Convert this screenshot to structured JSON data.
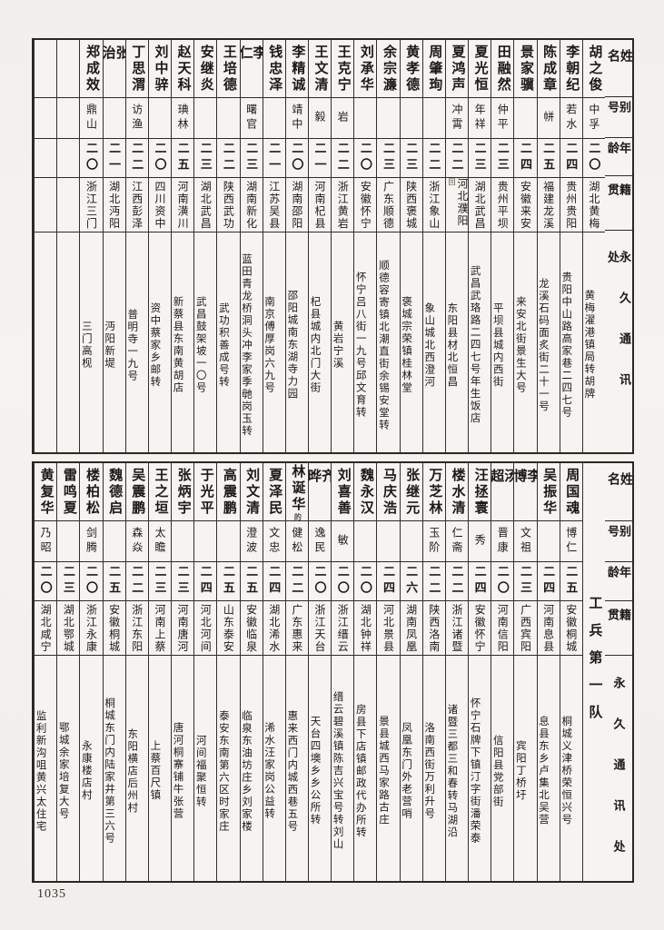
{
  "page": {
    "number": "1035"
  },
  "colors": {
    "paper": "#f5f4f0",
    "ink": "#1c1a17",
    "grid_line": "#2e2b26"
  },
  "row_headers": {
    "name": "姓名",
    "alias": "别号",
    "age": "年龄",
    "origin": "籍贯",
    "address": "永久通讯处"
  },
  "tables": [
    {
      "columns": [
        {
          "name": "胡之俊",
          "alias": "中孚",
          "age": "二〇",
          "origin": "湖北黄梅",
          "address": "黄梅濯港镇局转胡牌"
        },
        {
          "name": "李朝纪",
          "alias": "若水",
          "age": "二四",
          "origin": "贵州贵阳",
          "address": "贵阳中山路高家巷二四七号"
        },
        {
          "name": "陈成章",
          "alias": "帡",
          "age": "二五",
          "origin": "福建龙溪",
          "address": "龙溪石码面炙街二十一号"
        },
        {
          "name": "景家骥",
          "alias": "",
          "age": "二四",
          "origin": "安徽来安",
          "address": "来安北街景生大号"
        },
        {
          "name": "田融然",
          "alias": "仲平",
          "age": "二三",
          "origin": "贵州平坝",
          "address": "平坝县城内西街"
        },
        {
          "name": "夏光恒",
          "alias": "年祥",
          "age": "二三",
          "origin": "湖北武昌",
          "address": "武昌武珞路二四七号年生饭店"
        },
        {
          "name": "夏鸿声",
          "alias": "冲霄",
          "age": "二二",
          "origin": "河北濮阳",
          "origin_mark": "回",
          "address": "东阳县材北恒昌"
        },
        {
          "name": "周肇珣",
          "alias": "",
          "age": "二二",
          "origin": "浙江象山",
          "address": "象山城北西澄河"
        },
        {
          "name": "黄孝德",
          "alias": "",
          "age": "二三",
          "origin": "陕西褒城",
          "address": "褒城宗荣镇桂林堂"
        },
        {
          "name": "余宗濂",
          "alias": "",
          "age": "二三",
          "origin": "广东顺德",
          "address": "顺德容寄镇北潮直街余锡安堂转"
        },
        {
          "name": "刘承华",
          "alias": "",
          "age": "二〇",
          "origin": "安徽怀宁",
          "address": "怀宁吕八街一九号邱文育转"
        },
        {
          "name": "王克宁",
          "alias": "岩",
          "age": "二二",
          "origin": "浙江黄岩",
          "address": "黄岩宁溪"
        },
        {
          "name": "王文清",
          "alias": "毅",
          "age": "二一",
          "origin": "河南杞县",
          "address": "杞县城内北门大街"
        },
        {
          "name": "李精诚",
          "alias": "靖中",
          "age": "二〇",
          "origin": "湖南邵阳",
          "address": "邵阳城南东湖寺力园"
        },
        {
          "name": "钱忠泽",
          "alias": "",
          "age": "二一",
          "origin": "江苏吴县",
          "address": "南京傅厚岗六九号"
        },
        {
          "name": "李仁",
          "alias": "曙官",
          "age": "二三",
          "origin": "湖南新化",
          "address": "蓝田青龙桥洞头冲李家季毑岗玉转"
        },
        {
          "name": "王培德",
          "alias": "",
          "age": "二二",
          "origin": "陕西武功",
          "address": "武功积善成号转"
        },
        {
          "name": "安继炎",
          "alias": "",
          "age": "二三",
          "origin": "湖北武昌",
          "address": "武昌鼓架坡一〇号"
        },
        {
          "name": "赵天科",
          "alias": "琠林",
          "age": "二五",
          "origin": "河南潢川",
          "address": "新蔡县东南黄胡店"
        },
        {
          "name": "刘中骍",
          "alias": "",
          "age": "二〇",
          "origin": "四川资中",
          "address": "资中蔡家乡邮转"
        },
        {
          "name": "丁思渭",
          "alias": "访渔",
          "age": "二二",
          "origin": "江西彭泽",
          "address": "普明寺一九号"
        },
        {
          "name": "张治",
          "alias": "",
          "age": "二一",
          "origin": "湖北沔阳",
          "address": "沔阳新堤"
        },
        {
          "name": "郑成效",
          "alias": "鼎山",
          "age": "二〇",
          "origin": "浙江三门",
          "address": "三门高枧"
        },
        {
          "name": "",
          "alias": "",
          "age": "",
          "origin": "",
          "address": ""
        },
        {
          "name": "",
          "alias": "",
          "age": "",
          "origin": "",
          "address": ""
        }
      ]
    },
    {
      "columns": [
        {
          "type": "unit",
          "label": "工兵第一队"
        },
        {
          "name": "周国魂",
          "alias": "博仁",
          "age": "二五",
          "origin": "安徽桐城",
          "address": "桐城义津桥荣恒兴号"
        },
        {
          "name": "吴振华",
          "alias": "",
          "age": "二四",
          "origin": "河南息县",
          "address": "息县东乡卢集北吴营"
        },
        {
          "name": "李博",
          "alias": "文祖",
          "age": "二三",
          "origin": "广西宾阳",
          "address": "宾阳丁桥圩"
        },
        {
          "name": "汤超",
          "alias": "晋康",
          "age": "二〇",
          "origin": "河南信阳",
          "address": "信阳县党部街"
        },
        {
          "name": "汪拯寰",
          "alias": "秀",
          "age": "二四",
          "origin": "安徽怀宁",
          "address": "怀宁石牌下镇汀字街潘荣泰"
        },
        {
          "name": "楼水清",
          "alias": "仁斋",
          "age": "二二",
          "origin": "浙江诸暨",
          "address": "诸暨三都三和春转马湖沿"
        },
        {
          "name": "万芝林",
          "alias": "玉阶",
          "age": "二二",
          "origin": "陕西洛南",
          "address": "洛南西街万利升号"
        },
        {
          "name": "张继元",
          "alias": "",
          "age": "二六",
          "origin": "湖南凤凰",
          "address": "凤凰东门外老营哨"
        },
        {
          "name": "马庆浩",
          "alias": "",
          "age": "二四",
          "origin": "河北景县",
          "address": "景县城西马家路古庄"
        },
        {
          "name": "魏永汉",
          "alias": "",
          "age": "二〇",
          "origin": "湖北钟祥",
          "address": "房县下店镇邮政代办所转"
        },
        {
          "name": "刘喜善",
          "alias": "敏",
          "age": "二〇",
          "origin": "浙江缙云",
          "address": "缙云碧溪镇陈吉兴宝号转刘山"
        },
        {
          "name": "齐晔",
          "alias": "逸民",
          "age": "二〇",
          "origin": "浙江天台",
          "address": "天台四墺乡乡公所转"
        },
        {
          "name": "林诞华",
          "name_mark": "的",
          "alias": "健松",
          "age": "二二",
          "origin": "广东惠来",
          "address": "惠来西门内城西巷五号"
        },
        {
          "name": "夏泽民",
          "alias": "文忠",
          "age": "二四",
          "origin": "湖北浠水",
          "address": "浠水汪家岗公益转"
        },
        {
          "name": "刘文清",
          "alias": "澄波",
          "age": "二五",
          "origin": "安徽临泉",
          "address": "临泉东油坊庄乡刘家楼"
        },
        {
          "name": "高震鹏",
          "alias": "",
          "age": "二五",
          "origin": "山东泰安",
          "address": "泰安东南第六区时家庄"
        },
        {
          "name": "于光平",
          "alias": "",
          "age": "二四",
          "origin": "河北河间",
          "address": "河间福聚恒转"
        },
        {
          "name": "张炳宇",
          "alias": "",
          "age": "二三",
          "origin": "河南唐河",
          "address": "唐河桐寨铺牛张营"
        },
        {
          "name": "王之垣",
          "alias": "太瞻",
          "age": "二三",
          "origin": "河南上蔡",
          "address": "上蔡百尺镇"
        },
        {
          "name": "吴震鹏",
          "alias": "森焱",
          "age": "二二",
          "origin": "浙江东阳",
          "address": "东阳横店后州村"
        },
        {
          "name": "魏德启",
          "alias": "",
          "age": "二五",
          "origin": "安徽桐城",
          "address": "桐城东门内陆家井第三六号"
        },
        {
          "name": "楼柏松",
          "alias": "剑腾",
          "age": "二〇",
          "origin": "浙江永康",
          "address": "永康楼店村"
        },
        {
          "name": "雷鸣夏",
          "alias": "",
          "age": "二三",
          "origin": "湖北鄂城",
          "address": "鄂城余家培复大号"
        },
        {
          "name": "黄复华",
          "alias": "乃昭",
          "age": "二〇",
          "origin": "湖北咸宁",
          "address": "监利新沟咀黄兴太住宅"
        }
      ]
    }
  ]
}
